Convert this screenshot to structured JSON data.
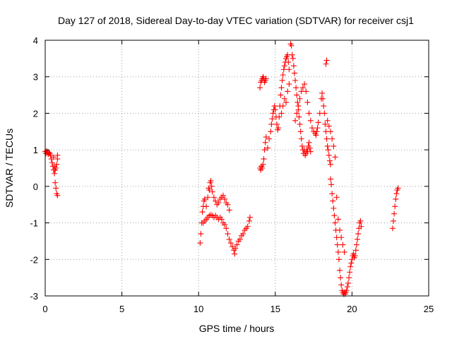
{
  "chart_data": {
    "type": "scatter",
    "title": "Day 127 of 2018, Sidereal Day-to-day VTEC variation (SDTVAR) for receiver csj1",
    "xlabel": "GPS time / hours",
    "ylabel": "SDTVAR / TECUs",
    "xlim": [
      0,
      25
    ],
    "ylim": [
      -3,
      4
    ],
    "xticks": [
      "0",
      "5",
      "10",
      "15",
      "20",
      "25"
    ],
    "yticks": [
      "-3",
      "-2",
      "-1",
      "0",
      "1",
      "2",
      "3",
      "4"
    ],
    "grid": true,
    "marker": "plus",
    "color": "#ff0000",
    "series": [
      {
        "name": "csj1",
        "segments": [
          [
            [
              0.0,
              0.95
            ],
            [
              0.05,
              0.9
            ],
            [
              0.1,
              0.97
            ],
            [
              0.15,
              0.92
            ],
            [
              0.2,
              0.88
            ],
            [
              0.25,
              0.93
            ],
            [
              0.3,
              0.9
            ],
            [
              0.35,
              0.85
            ],
            [
              0.4,
              0.75
            ],
            [
              0.45,
              0.65
            ],
            [
              0.5,
              0.55
            ],
            [
              0.55,
              0.45
            ],
            [
              0.6,
              0.35
            ],
            [
              0.65,
              0.1
            ],
            [
              0.7,
              -0.05
            ],
            [
              0.75,
              -0.2
            ],
            [
              0.8,
              -0.25
            ],
            [
              0.55,
              0.8
            ],
            [
              0.6,
              0.55
            ],
            [
              0.65,
              0.45
            ],
            [
              0.7,
              0.5
            ],
            [
              0.75,
              0.6
            ],
            [
              0.8,
              0.75
            ],
            [
              0.8,
              0.85
            ]
          ],
          [
            [
              10.1,
              -1.55
            ],
            [
              10.15,
              -1.3
            ],
            [
              10.2,
              -1.0
            ],
            [
              10.25,
              -0.7
            ],
            [
              10.3,
              -0.55
            ],
            [
              10.35,
              -0.4
            ],
            [
              10.4,
              -0.35
            ],
            [
              10.5,
              -0.55
            ],
            [
              10.6,
              -0.3
            ],
            [
              10.65,
              -0.05
            ],
            [
              10.7,
              -0.1
            ],
            [
              10.75,
              0.1
            ],
            [
              10.8,
              0.15
            ],
            [
              10.85,
              0.0
            ],
            [
              10.9,
              -0.15
            ],
            [
              11.0,
              -0.3
            ],
            [
              11.1,
              -0.4
            ],
            [
              11.2,
              -0.5
            ],
            [
              11.3,
              -0.45
            ],
            [
              11.4,
              -0.35
            ],
            [
              11.5,
              -0.3
            ],
            [
              11.6,
              -0.25
            ],
            [
              11.7,
              -0.35
            ],
            [
              11.8,
              -0.45
            ],
            [
              11.9,
              -0.5
            ],
            [
              12.0,
              -0.65
            ],
            [
              10.3,
              -1.0
            ],
            [
              10.4,
              -0.95
            ],
            [
              10.5,
              -0.9
            ],
            [
              10.6,
              -0.85
            ],
            [
              10.7,
              -0.8
            ],
            [
              10.8,
              -0.78
            ],
            [
              10.9,
              -0.8
            ],
            [
              11.0,
              -0.85
            ],
            [
              11.1,
              -0.8
            ],
            [
              11.2,
              -0.85
            ],
            [
              11.3,
              -0.9
            ],
            [
              11.4,
              -0.85
            ],
            [
              11.5,
              -0.9
            ],
            [
              11.6,
              -1.0
            ],
            [
              11.7,
              -1.05
            ],
            [
              11.8,
              -1.15
            ],
            [
              11.9,
              -1.3
            ],
            [
              12.0,
              -1.45
            ],
            [
              12.1,
              -1.55
            ],
            [
              12.2,
              -1.65
            ],
            [
              12.3,
              -1.75
            ],
            [
              12.35,
              -1.85
            ],
            [
              12.4,
              -1.7
            ],
            [
              12.5,
              -1.6
            ],
            [
              12.6,
              -1.5
            ],
            [
              12.7,
              -1.45
            ],
            [
              12.8,
              -1.35
            ],
            [
              12.9,
              -1.3
            ],
            [
              13.0,
              -1.2
            ],
            [
              13.1,
              -1.15
            ],
            [
              13.2,
              -1.1
            ],
            [
              13.3,
              -0.95
            ],
            [
              13.35,
              -0.85
            ]
          ],
          [
            [
              14.0,
              0.5
            ],
            [
              14.05,
              0.45
            ],
            [
              14.1,
              0.55
            ],
            [
              14.15,
              0.5
            ],
            [
              14.2,
              0.6
            ],
            [
              14.25,
              0.75
            ],
            [
              14.3,
              1.0
            ],
            [
              14.35,
              1.2
            ],
            [
              14.4,
              1.35
            ],
            [
              14.0,
              2.7
            ],
            [
              14.05,
              2.85
            ],
            [
              14.1,
              2.9
            ],
            [
              14.15,
              2.95
            ],
            [
              14.2,
              3.0
            ],
            [
              14.25,
              2.95
            ],
            [
              14.3,
              2.85
            ],
            [
              14.35,
              2.9
            ],
            [
              14.4,
              2.95
            ],
            [
              14.5,
              1.05
            ],
            [
              14.6,
              1.3
            ],
            [
              14.7,
              1.5
            ],
            [
              14.75,
              1.7
            ],
            [
              14.8,
              1.85
            ],
            [
              14.85,
              2.0
            ],
            [
              14.9,
              2.1
            ],
            [
              14.95,
              2.2
            ],
            [
              15.0,
              2.1
            ],
            [
              15.05,
              1.9
            ],
            [
              15.1,
              1.7
            ],
            [
              15.15,
              1.55
            ],
            [
              15.2,
              1.6
            ],
            [
              15.25,
              1.9
            ],
            [
              15.3,
              2.2
            ],
            [
              15.35,
              2.5
            ],
            [
              15.4,
              2.7
            ],
            [
              15.45,
              2.9
            ],
            [
              15.5,
              3.05
            ],
            [
              15.55,
              3.2
            ],
            [
              15.6,
              3.3
            ],
            [
              15.65,
              3.4
            ],
            [
              15.7,
              3.5
            ],
            [
              15.75,
              3.55
            ],
            [
              15.8,
              3.6
            ],
            [
              15.85,
              3.4
            ],
            [
              15.9,
              3.2
            ],
            [
              15.4,
              2.0
            ],
            [
              15.5,
              2.2
            ],
            [
              15.6,
              2.4
            ],
            [
              15.7,
              2.3
            ],
            [
              15.8,
              2.6
            ],
            [
              15.9,
              2.8
            ],
            [
              16.0,
              3.9
            ],
            [
              16.05,
              3.85
            ],
            [
              16.1,
              3.6
            ],
            [
              16.15,
              3.5
            ],
            [
              16.2,
              3.3
            ],
            [
              16.25,
              3.1
            ],
            [
              16.3,
              2.9
            ],
            [
              16.35,
              2.7
            ],
            [
              16.4,
              2.5
            ],
            [
              16.45,
              2.3
            ],
            [
              16.5,
              2.1
            ],
            [
              16.55,
              1.9
            ],
            [
              16.6,
              1.7
            ],
            [
              16.65,
              1.5
            ],
            [
              16.7,
              1.3
            ],
            [
              16.75,
              1.1
            ],
            [
              16.8,
              1.0
            ],
            [
              16.85,
              0.9
            ],
            [
              16.9,
              1.0
            ],
            [
              16.95,
              0.85
            ],
            [
              17.0,
              0.9
            ],
            [
              17.05,
              1.0
            ],
            [
              17.1,
              0.95
            ],
            [
              17.15,
              1.1
            ],
            [
              17.2,
              1.2
            ],
            [
              17.25,
              1.05
            ],
            [
              17.3,
              0.95
            ],
            [
              16.3,
              1.8
            ],
            [
              16.4,
              2.0
            ],
            [
              16.5,
              2.2
            ],
            [
              16.6,
              2.4
            ],
            [
              16.7,
              2.6
            ],
            [
              16.8,
              2.7
            ],
            [
              16.9,
              2.8
            ],
            [
              17.0,
              2.6
            ],
            [
              17.1,
              2.3
            ],
            [
              17.2,
              2.0
            ],
            [
              17.3,
              1.8
            ],
            [
              17.4,
              1.6
            ],
            [
              17.5,
              1.5
            ],
            [
              17.6,
              1.45
            ],
            [
              17.65,
              1.4
            ],
            [
              17.7,
              1.5
            ],
            [
              17.75,
              1.6
            ],
            [
              17.8,
              1.75
            ],
            [
              17.9,
              2.0
            ],
            [
              18.0,
              2.4
            ],
            [
              18.05,
              2.55
            ],
            [
              18.1,
              2.4
            ],
            [
              18.15,
              2.2
            ],
            [
              18.2,
              2.0
            ],
            [
              18.25,
              1.7
            ],
            [
              18.3,
              1.5
            ],
            [
              18.35,
              1.3
            ],
            [
              18.4,
              1.1
            ],
            [
              18.45,
              1.0
            ],
            [
              18.5,
              0.85
            ],
            [
              18.55,
              0.7
            ],
            [
              18.6,
              0.6
            ],
            [
              18.3,
              3.35
            ],
            [
              18.35,
              3.45
            ],
            [
              18.6,
              0.2
            ],
            [
              18.65,
              0.05
            ],
            [
              18.7,
              -0.2
            ],
            [
              18.75,
              -0.4
            ],
            [
              18.8,
              -0.6
            ],
            [
              18.85,
              -0.8
            ],
            [
              18.9,
              -1.0
            ],
            [
              18.95,
              -1.2
            ],
            [
              19.0,
              -1.4
            ],
            [
              19.05,
              -1.6
            ],
            [
              19.1,
              -1.8
            ],
            [
              19.15,
              -2.0
            ],
            [
              19.2,
              -2.3
            ],
            [
              19.25,
              -2.5
            ],
            [
              19.3,
              -2.7
            ],
            [
              19.35,
              -2.85
            ],
            [
              19.4,
              -2.9
            ],
            [
              19.45,
              -2.95
            ],
            [
              19.5,
              -2.9
            ],
            [
              19.55,
              -2.95
            ],
            [
              19.6,
              -2.9
            ],
            [
              19.65,
              -2.85
            ],
            [
              19.7,
              -2.75
            ],
            [
              19.75,
              -2.65
            ],
            [
              19.8,
              -2.5
            ],
            [
              19.85,
              -2.35
            ],
            [
              19.9,
              -2.2
            ],
            [
              19.95,
              -2.1
            ],
            [
              20.0,
              -2.0
            ],
            [
              20.05,
              -1.9
            ],
            [
              20.1,
              -1.85
            ],
            [
              20.15,
              -1.95
            ],
            [
              20.2,
              -1.9
            ],
            [
              20.25,
              -1.75
            ],
            [
              20.3,
              -1.6
            ],
            [
              20.35,
              -1.45
            ],
            [
              20.4,
              -1.3
            ],
            [
              20.45,
              -1.15
            ],
            [
              20.5,
              -1.0
            ],
            [
              20.55,
              -0.95
            ],
            [
              20.6,
              -1.1
            ],
            [
              18.4,
              1.8
            ],
            [
              18.5,
              1.65
            ],
            [
              18.6,
              1.5
            ],
            [
              18.7,
              1.3
            ],
            [
              18.8,
              1.1
            ],
            [
              18.9,
              0.8
            ],
            [
              19.0,
              -0.3
            ],
            [
              19.1,
              -0.9
            ],
            [
              19.2,
              -1.2
            ],
            [
              19.3,
              -1.4
            ],
            [
              19.4,
              -1.6
            ],
            [
              19.5,
              -1.8
            ]
          ],
          [
            [
              22.65,
              -1.15
            ],
            [
              22.7,
              -0.95
            ],
            [
              22.75,
              -0.75
            ],
            [
              22.8,
              -0.55
            ],
            [
              22.85,
              -0.35
            ],
            [
              22.9,
              -0.2
            ],
            [
              22.95,
              -0.1
            ],
            [
              23.0,
              -0.05
            ]
          ]
        ]
      }
    ]
  }
}
